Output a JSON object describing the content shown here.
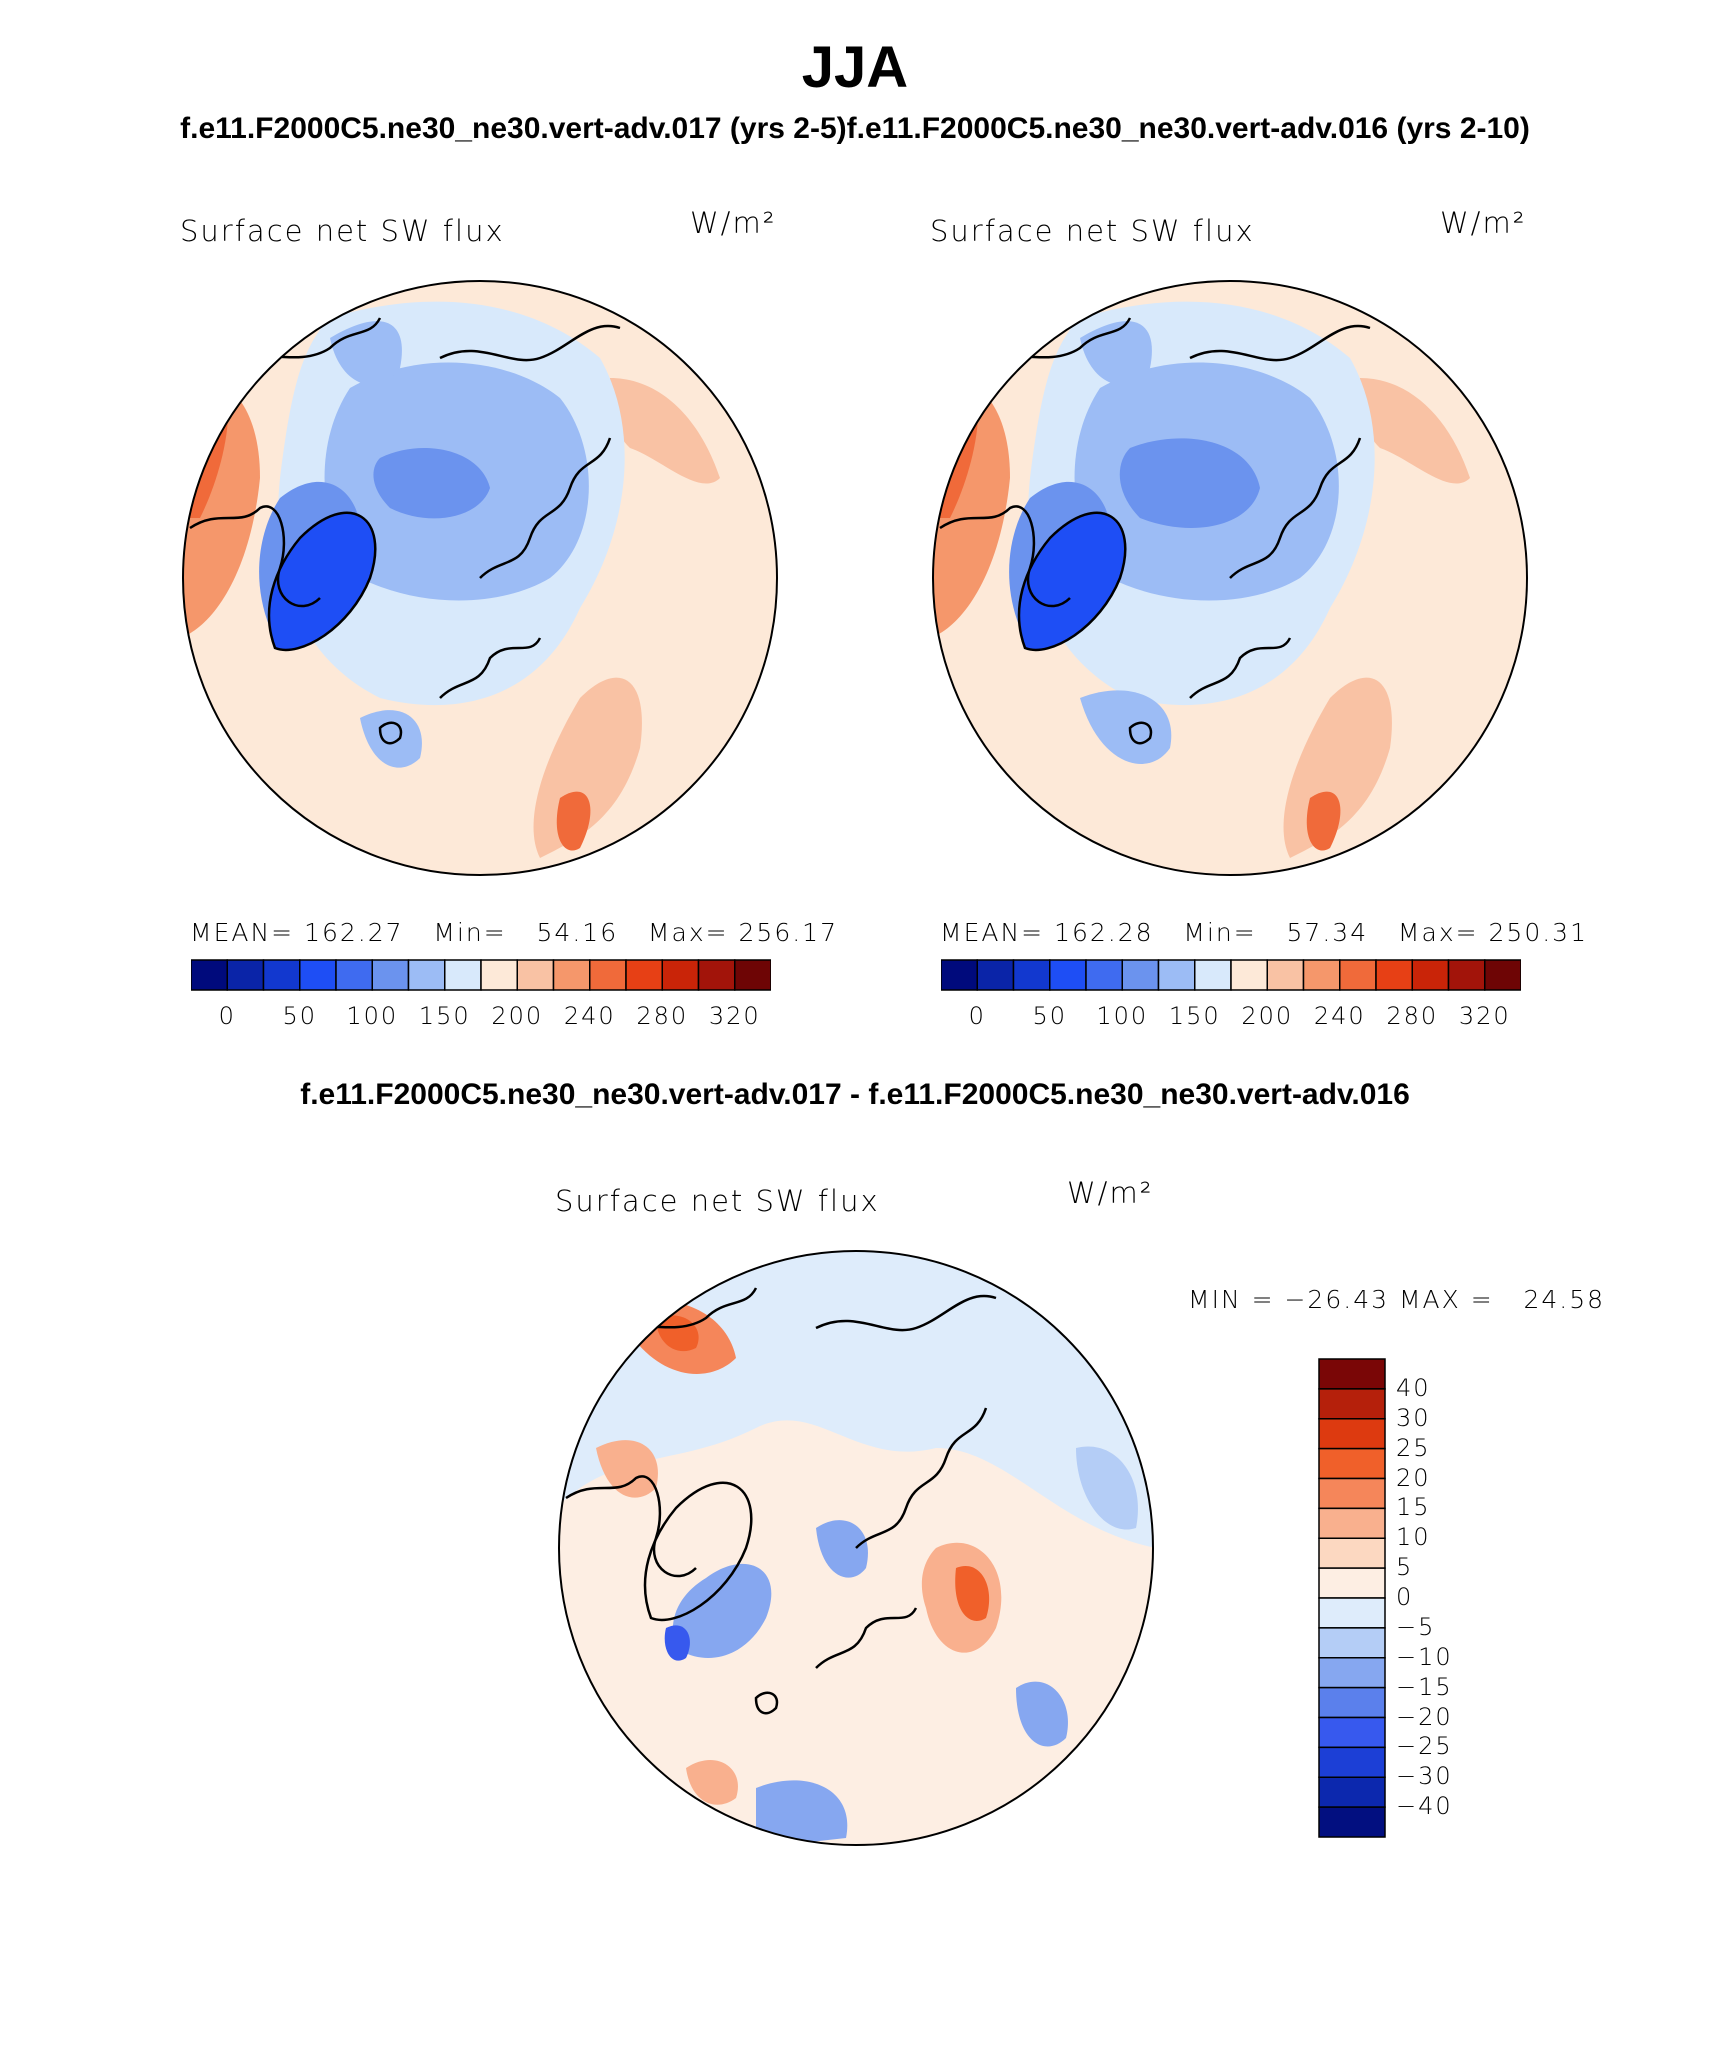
{
  "page": {
    "title": "JJA",
    "case_titles": [
      "f.e11.F2000C5.ne30_ne30.vert-adv.017 (yrs 2-5)",
      "f.e11.F2000C5.ne30_ne30.vert-adv.016 (yrs 2-10)"
    ],
    "diff_title": "f.e11.F2000C5.ne30_ne30.vert-adv.017 - f.e11.F2000C5.ne30_ne30.vert-adv.016"
  },
  "panels": [
    {
      "variable": "Surface net SW flux",
      "units": "W/m²",
      "stats": "MEAN= 162.27   Min=   54.16   Max= 256.17",
      "colorbar": {
        "tick_labels": [
          "0",
          "50",
          "100",
          "150",
          "200",
          "240",
          "280",
          "320"
        ],
        "colors": [
          "#000a7c",
          "#0a24a8",
          "#1238cf",
          "#1e4ef5",
          "#3f6bf0",
          "#6b93ee",
          "#9cbcf5",
          "#d8e9fb",
          "#fde9d8",
          "#f9c2a4",
          "#f5976b",
          "#f06a3a",
          "#e74015",
          "#c92408",
          "#a2140a",
          "#6e0505"
        ]
      }
    },
    {
      "variable": "Surface net SW flux",
      "units": "W/m²",
      "stats": "MEAN= 162.28   Min=   57.34   Max= 250.31",
      "colorbar": {
        "tick_labels": [
          "0",
          "50",
          "100",
          "150",
          "200",
          "240",
          "280",
          "320"
        ],
        "colors": [
          "#000a7c",
          "#0a24a8",
          "#1238cf",
          "#1e4ef5",
          "#3f6bf0",
          "#6b93ee",
          "#9cbcf5",
          "#d8e9fb",
          "#fde9d8",
          "#f9c2a4",
          "#f5976b",
          "#f06a3a",
          "#e74015",
          "#c92408",
          "#a2140a",
          "#6e0505"
        ]
      }
    },
    {
      "variable": "Surface net SW flux",
      "units": "W/m²",
      "stats": "MIN = −26.43 MAX =   24.58",
      "colorbar": {
        "tick_labels": [
          "40",
          "30",
          "25",
          "20",
          "15",
          "10",
          "5",
          "0",
          "−5",
          "−10",
          "−15",
          "−20",
          "−25",
          "−30",
          "−40"
        ],
        "colors": [
          "#7a0606",
          "#b5200b",
          "#dd3a10",
          "#f0602a",
          "#f5865a",
          "#f9b08e",
          "#fcd8c1",
          "#fdeee3",
          "#deecfb",
          "#b4cdf6",
          "#86a7f0",
          "#5b80ec",
          "#3759ee",
          "#1c3fd6",
          "#0c28ae",
          "#020f80"
        ]
      }
    }
  ]
}
